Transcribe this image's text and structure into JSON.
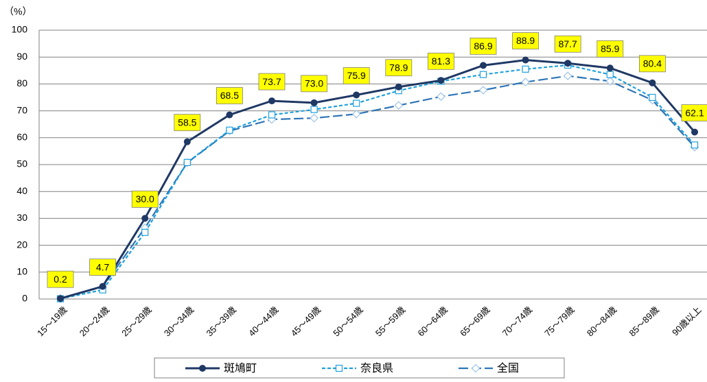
{
  "chart_data": {
    "type": "line",
    "y_unit": "（%）",
    "categories": [
      "15～19歳",
      "20～24歳",
      "25～29歳",
      "30～34歳",
      "35～39歳",
      "40～44歳",
      "45～49歳",
      "50～54歳",
      "55～59歳",
      "60～64歳",
      "65～69歳",
      "70～74歳",
      "75～79歳",
      "80～84歳",
      "85～89歳",
      "90歳以上"
    ],
    "series": [
      {
        "name": "斑鳩町",
        "color": "#1f3864",
        "dash": "solid",
        "marker": "circle",
        "values": [
          0.2,
          4.7,
          30.0,
          58.5,
          68.5,
          73.7,
          73.0,
          75.9,
          78.9,
          81.3,
          86.9,
          88.9,
          87.7,
          85.9,
          80.4,
          62.1
        ],
        "value_labels": [
          "0.2",
          "4.7",
          "30.0",
          "58.5",
          "68.5",
          "73.7",
          "73.0",
          "75.9",
          "78.9",
          "81.3",
          "86.9",
          "88.9",
          "87.7",
          "85.9",
          "80.4",
          "62.1"
        ]
      },
      {
        "name": "奈良県",
        "color": "#1ea0dc",
        "dash": "short",
        "marker": "square",
        "values": [
          0.1,
          3.4,
          24.8,
          50.8,
          62.8,
          68.5,
          70.5,
          72.8,
          77.5,
          81.0,
          83.5,
          85.5,
          87.0,
          83.5,
          75.0,
          57.3
        ]
      },
      {
        "name": "全国",
        "color": "#2e75b6",
        "dash": "long",
        "marker": "diamond",
        "values": [
          0.2,
          4.5,
          26.5,
          50.7,
          62.5,
          66.8,
          67.3,
          68.8,
          72.0,
          75.3,
          77.7,
          80.7,
          83.0,
          81.0,
          74.0,
          56.5
        ]
      }
    ],
    "ylim": [
      0,
      100
    ],
    "yticks": [
      0,
      10,
      20,
      30,
      40,
      50,
      60,
      70,
      80,
      90,
      100
    ],
    "grid": true,
    "legend": "bottom"
  }
}
